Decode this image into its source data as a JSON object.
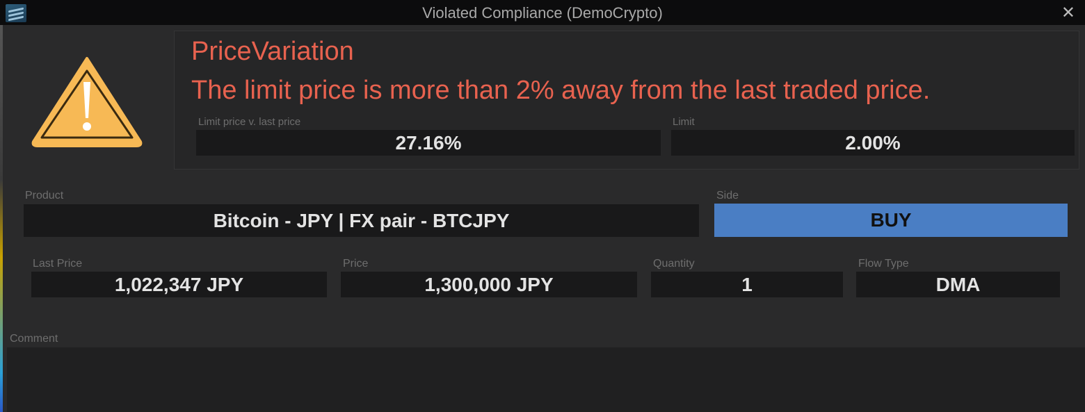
{
  "window": {
    "title": "Violated Compliance (DemoCrypto)",
    "close_label": "✕"
  },
  "alert": {
    "rule": "PriceVariation",
    "message": "The limit price is more than 2% away from the last traded price.",
    "icon": "warning-triangle-icon",
    "color": "#e8624f",
    "metrics": [
      {
        "label": "Limit price v. last price",
        "value": "27.16%"
      },
      {
        "label": "Limit",
        "value": "2.00%"
      }
    ]
  },
  "order": {
    "product": {
      "label": "Product",
      "value": "Bitcoin - JPY | FX pair - BTCJPY"
    },
    "side": {
      "label": "Side",
      "value": "BUY",
      "color": "#4a7ec4"
    },
    "last_price": {
      "label": "Last Price",
      "value": "1,022,347 JPY"
    },
    "price": {
      "label": "Price",
      "value": "1,300,000 JPY"
    },
    "quantity": {
      "label": "Quantity",
      "value": "1"
    },
    "flow_type": {
      "label": "Flow Type",
      "value": "DMA"
    },
    "comment": {
      "label": "Comment",
      "value": ""
    }
  }
}
